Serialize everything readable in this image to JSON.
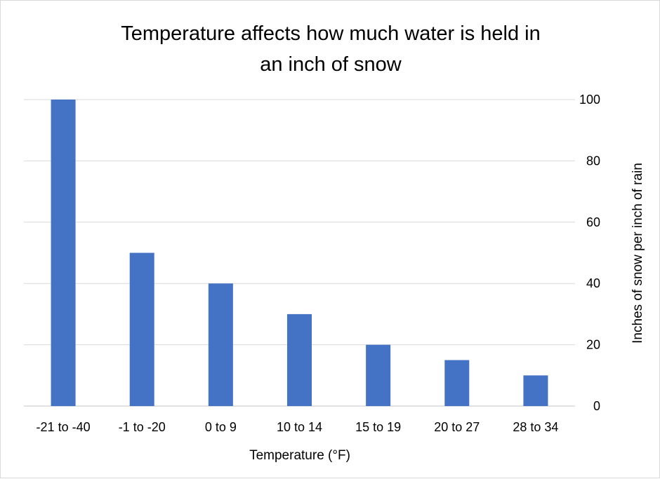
{
  "chart_data": {
    "type": "bar",
    "title_lines": [
      "Temperature affects how much water is held in",
      "an inch of snow"
    ],
    "categories": [
      "-21 to -40",
      "-1 to -20",
      "0 to 9",
      "10 to 14",
      "15 to 19",
      "20 to 27",
      "28 to 34"
    ],
    "series": [
      {
        "name": "Inches of snow per inch of rain",
        "values": [
          100,
          50,
          40,
          30,
          20,
          15,
          10
        ]
      }
    ],
    "xlabel": "Temperature (°F)",
    "ylabel": "Inches of snow per inch of rain",
    "ylim": [
      0,
      100
    ],
    "yticks": [
      "0",
      "20",
      "40",
      "60",
      "80",
      "100"
    ],
    "y_axis_side": "right",
    "grid": true,
    "bar_color": "#4472c4",
    "grid_color": "#d9d9d9"
  }
}
